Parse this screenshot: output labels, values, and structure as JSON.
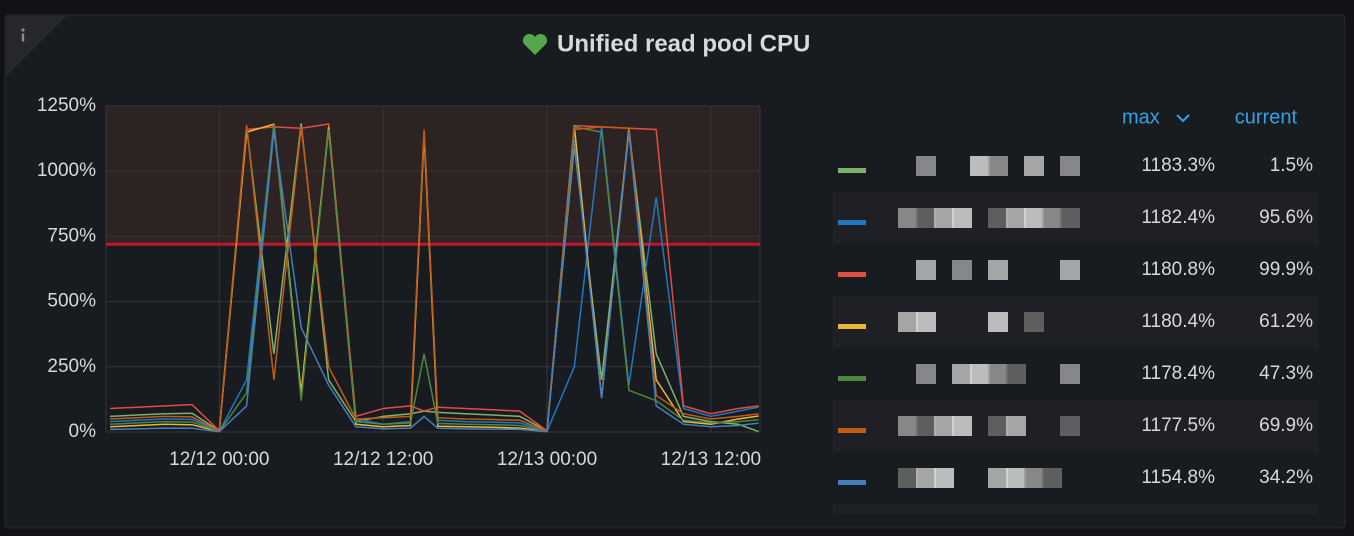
{
  "chart_data": {
    "type": "line",
    "title": "Unified read pool CPU",
    "x": [
      -8,
      -6,
      -4,
      -2,
      0,
      2,
      4,
      6,
      8,
      10,
      12,
      14,
      15,
      16,
      18,
      20,
      22,
      24,
      26,
      28,
      30,
      32,
      34,
      36,
      38,
      39.5
    ],
    "xlim": [
      -8.3,
      39.6
    ],
    "xticks": [
      {
        "value": 0,
        "label": "12/12 00:00"
      },
      {
        "value": 12,
        "label": "12/12 12:00"
      },
      {
        "value": 24,
        "label": "12/13 00:00"
      },
      {
        "value": 36,
        "label": "12/13 12:00"
      }
    ],
    "ylim": [
      0,
      1250
    ],
    "yticks": [
      {
        "value": 0,
        "label": "0%"
      },
      {
        "value": 250,
        "label": "250%"
      },
      {
        "value": 500,
        "label": "500%"
      },
      {
        "value": 750,
        "label": "750%"
      },
      {
        "value": 1000,
        "label": "1000%"
      },
      {
        "value": 1250,
        "label": "1250%"
      }
    ],
    "grid": true,
    "threshold": 720,
    "threshold_color": "#c4162a",
    "legend": {
      "columns": [
        "max",
        "current"
      ]
    },
    "series": [
      {
        "color": "#7EB26D",
        "values": [
          60,
          65,
          70,
          72,
          5,
          1170,
          300,
          1183.3,
          200,
          40,
          60,
          70,
          80,
          75,
          70,
          65,
          60,
          5,
          1100,
          200,
          1150,
          300,
          60,
          40,
          30,
          1.5
        ],
        "max": {
          "value": 1183.3,
          "label": "1183.3%"
        },
        "current": {
          "value": 1.5,
          "label": "1.5%"
        }
      },
      {
        "color": "#1F78C1",
        "values": [
          40,
          45,
          50,
          48,
          3,
          200,
          1182.4,
          150,
          1160,
          50,
          30,
          40,
          1150,
          45,
          40,
          38,
          35,
          3,
          250,
          1170,
          180,
          900,
          90,
          60,
          80,
          95.6
        ],
        "max": {
          "value": 1182.4,
          "label": "1182.4%"
        },
        "current": {
          "value": 95.6,
          "label": "95.6%"
        }
      },
      {
        "color": "#E24D42",
        "values": [
          90,
          95,
          100,
          105,
          5,
          1160,
          1170,
          1165,
          1180.8,
          60,
          90,
          100,
          80,
          95,
          90,
          85,
          80,
          5,
          1175,
          1170,
          1165,
          1160,
          100,
          70,
          90,
          99.9
        ],
        "max": {
          "value": 1180.8,
          "label": "1180.8%"
        },
        "current": {
          "value": 99.9,
          "label": "99.9%"
        }
      },
      {
        "color": "#EAB839",
        "values": [
          20,
          25,
          30,
          28,
          2,
          1150,
          1180.4,
          150,
          1170,
          30,
          20,
          25,
          1140,
          22,
          20,
          18,
          15,
          2,
          1175,
          130,
          1165,
          200,
          40,
          30,
          50,
          61.2
        ],
        "max": {
          "value": 1180.4,
          "label": "1180.4%"
        },
        "current": {
          "value": 61.2,
          "label": "61.2%"
        }
      },
      {
        "color": "#508642",
        "values": [
          30,
          35,
          40,
          38,
          2,
          150,
          1178.4,
          120,
          1160,
          40,
          30,
          35,
          300,
          33,
          30,
          28,
          25,
          2,
          1170,
          1150,
          160,
          120,
          45,
          35,
          40,
          47.3
        ],
        "max": {
          "value": 1178.4,
          "label": "1178.4%"
        },
        "current": {
          "value": 47.3,
          "label": "47.3%"
        }
      },
      {
        "color": "#C15C17",
        "values": [
          50,
          55,
          60,
          58,
          3,
          1177.5,
          200,
          1170,
          250,
          50,
          55,
          60,
          1160,
          55,
          50,
          48,
          45,
          3,
          1160,
          1170,
          1165,
          140,
          70,
          50,
          60,
          69.9
        ],
        "max": {
          "value": 1177.5,
          "label": "1177.5%"
        },
        "current": {
          "value": 69.9,
          "label": "69.9%"
        }
      },
      {
        "color": "#447EBC",
        "values": [
          10,
          12,
          15,
          14,
          1,
          100,
          1154.8,
          400,
          180,
          20,
          12,
          15,
          60,
          14,
          12,
          11,
          10,
          1,
          1120,
          130,
          1150,
          100,
          30,
          20,
          25,
          34.2
        ],
        "max": {
          "value": 1154.8,
          "label": "1154.8%"
        },
        "current": {
          "value": 34.2,
          "label": "34.2%"
        }
      }
    ]
  }
}
